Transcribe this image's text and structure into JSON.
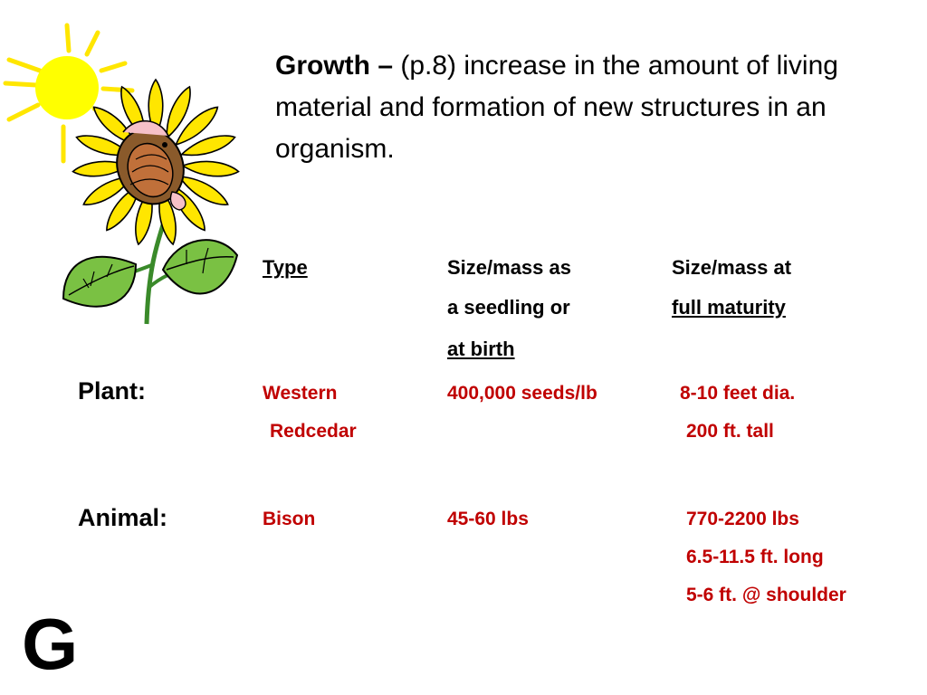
{
  "definition": {
    "term": "Growth –",
    "text": " (p.8) increase in the amount of living material and formation of new structures in an organism."
  },
  "table": {
    "headers": {
      "type": "Type",
      "seedling_line1": "Size/mass as",
      "seedling_line2": "a seedling or",
      "seedling_line3": "at birth",
      "maturity_line1": "Size/mass at",
      "maturity_line2": "full maturity"
    },
    "rows": [
      {
        "label": "Plant:",
        "type_line1": "Western",
        "type_line2": "Redcedar",
        "seedling": "400,000 seeds/lb",
        "maturity": [
          "8-10 feet dia.",
          "200 ft. tall"
        ]
      },
      {
        "label": "Animal:",
        "type_line1": "Bison",
        "seedling": "45-60 lbs",
        "maturity": [
          "770-2200 lbs",
          "6.5-11.5 ft. long",
          "5-6 ft. @ shoulder"
        ]
      }
    ]
  },
  "corner_letter": "G",
  "illustration": {
    "icon": "sunflower-and-sun-icon"
  },
  "colors": {
    "data_text": "#c00000",
    "sun": "#ffff00",
    "petal": "#ffe600",
    "leaf": "#7ac143"
  }
}
